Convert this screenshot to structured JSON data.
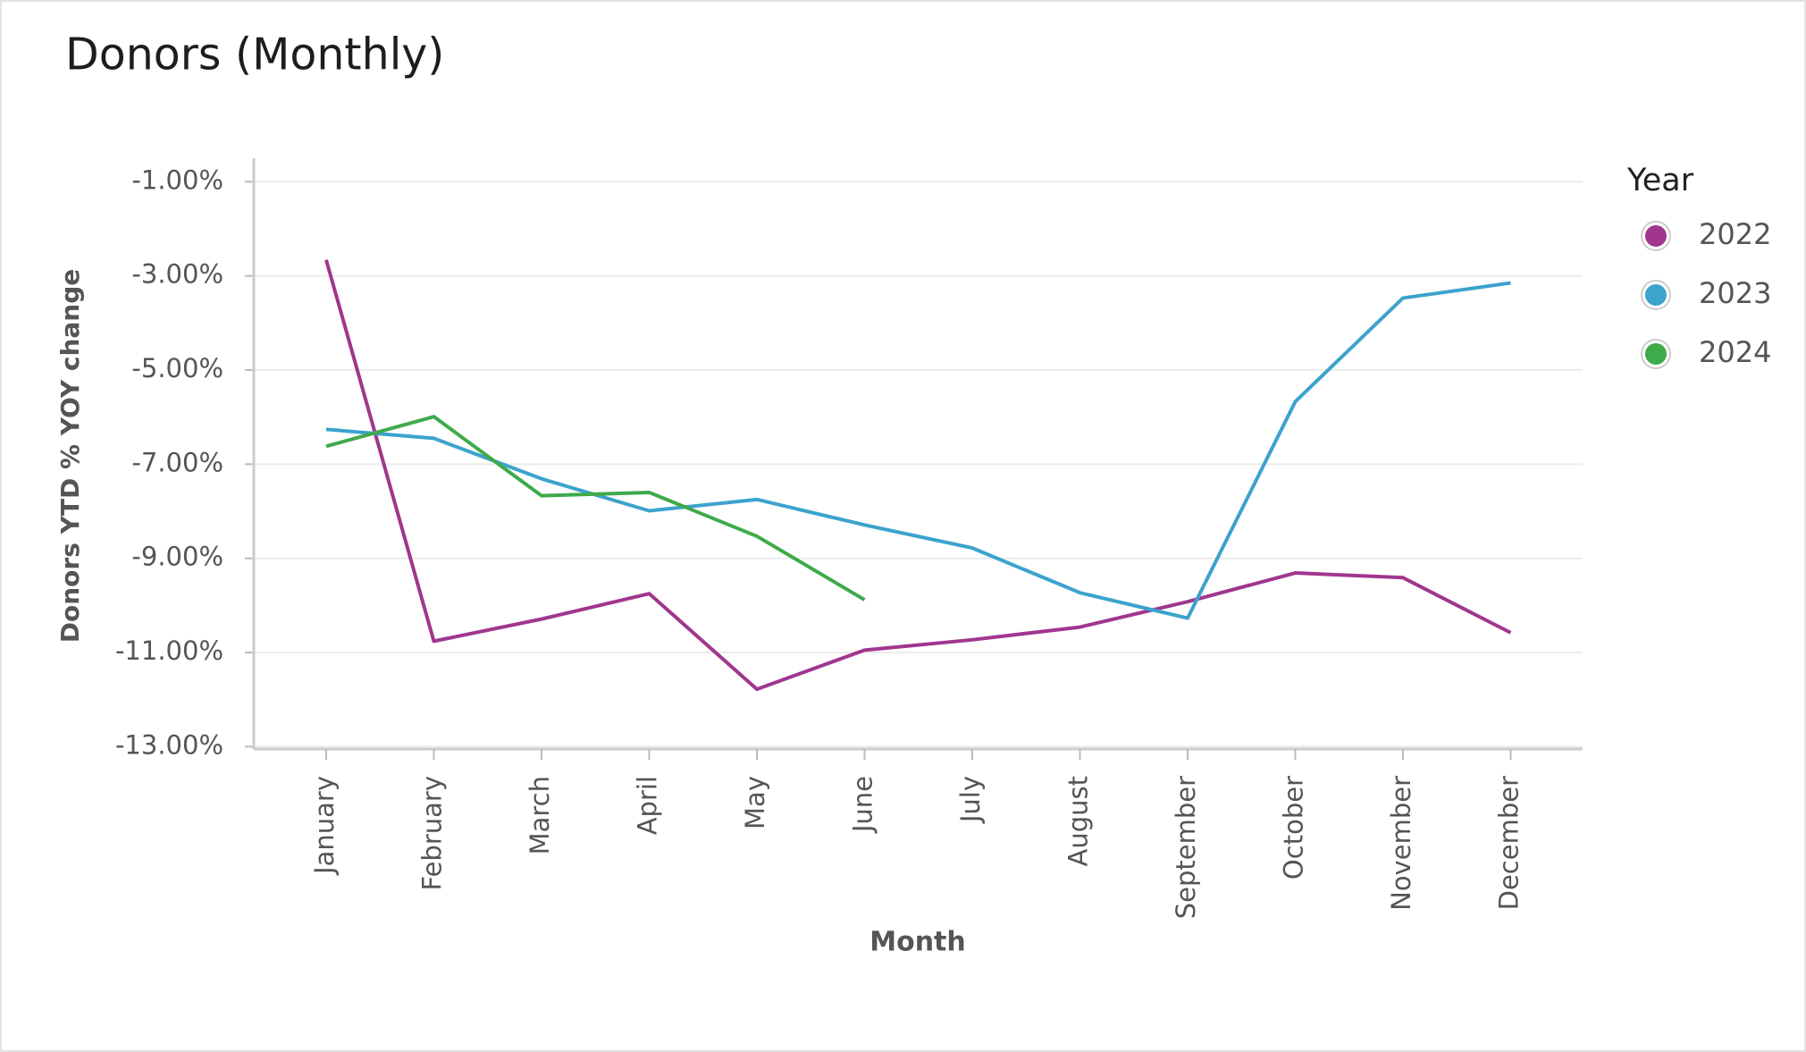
{
  "chart_data": {
    "type": "line",
    "title": "Donors (Monthly)",
    "x_label": "Month",
    "y_label": "Donors YTD % YOY change",
    "legend_title": "Year",
    "legend": "right",
    "grid": true,
    "categories": [
      "January",
      "February",
      "March",
      "April",
      "May",
      "June",
      "July",
      "August",
      "September",
      "October",
      "November",
      "December"
    ],
    "series": [
      {
        "name": "2022",
        "color": "#a0368f",
        "values": [
          -2.66,
          -10.76,
          -10.29,
          -9.75,
          -11.78,
          -10.95,
          -10.73,
          -10.46,
          -9.92,
          -9.31,
          -9.41,
          -10.58
        ]
      },
      {
        "name": "2023",
        "color": "#3ba3cc",
        "values": [
          -6.26,
          -6.45,
          -7.31,
          -7.99,
          -7.75,
          -8.29,
          -8.78,
          -9.73,
          -10.27,
          -5.67,
          -3.47,
          -3.15
        ]
      },
      {
        "name": "2024",
        "color": "#3faa4a",
        "values": [
          -6.62,
          -5.99,
          -7.67,
          -7.6,
          -8.53,
          -9.88,
          null,
          null,
          null,
          null,
          null,
          null
        ]
      }
    ],
    "ylim": [
      -13.05,
      -0.5
    ],
    "yticks": [
      {
        "value": -1,
        "label": "-1.00%"
      },
      {
        "value": -3,
        "label": "-3.00%"
      },
      {
        "value": -5,
        "label": "-5.00%"
      },
      {
        "value": -7,
        "label": "-7.00%"
      },
      {
        "value": -9,
        "label": "-9.00%"
      },
      {
        "value": -11,
        "label": "-11.00%"
      },
      {
        "value": -13,
        "label": "-13.00%"
      }
    ]
  }
}
